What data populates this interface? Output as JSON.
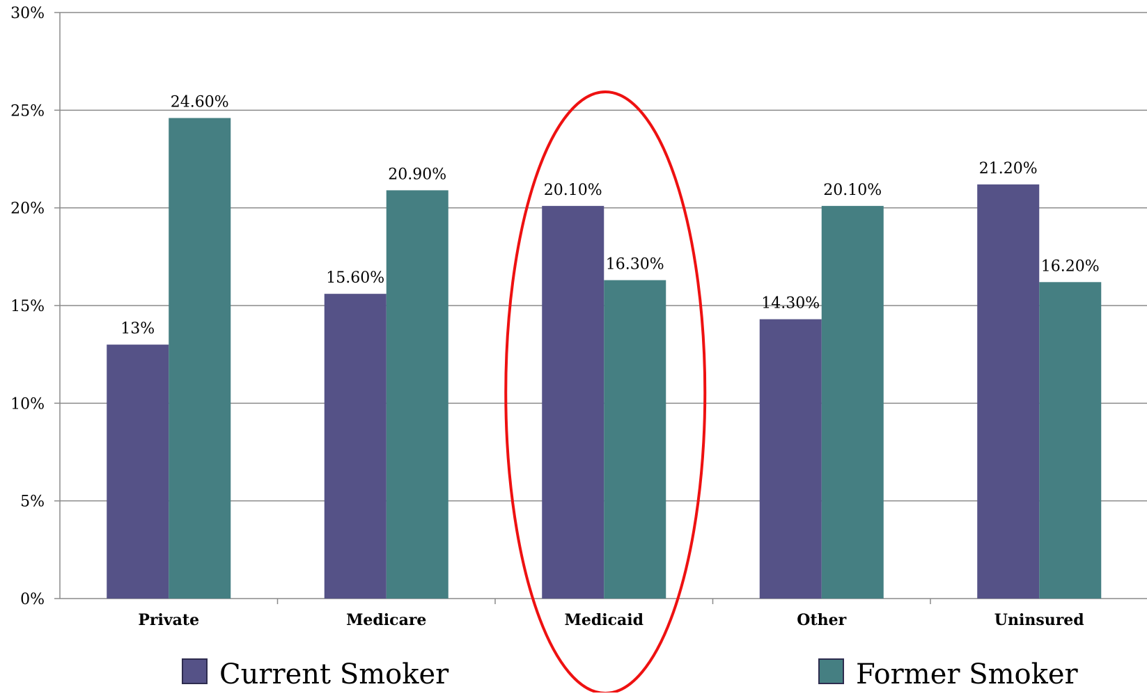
{
  "chart_data": {
    "type": "bar",
    "categories": [
      "Private",
      "Medicare",
      "Medicaid",
      "Other",
      "Uninsured"
    ],
    "series": [
      {
        "name": "Current Smoker",
        "color": "#555287",
        "values": [
          13,
          15.6,
          20.1,
          14.3,
          21.2
        ],
        "labels": [
          "13%",
          "15.60%",
          "20.10%",
          "14.30%",
          "21.20%"
        ]
      },
      {
        "name": "Former Smoker",
        "color": "#457f82",
        "values": [
          24.6,
          20.9,
          16.3,
          20.1,
          16.2
        ],
        "labels": [
          "24.60%",
          "20.90%",
          "16.30%",
          "20.10%",
          "16.20%"
        ]
      }
    ],
    "ylim": [
      0,
      30
    ],
    "yticks": [
      "0%",
      "5%",
      "10%",
      "15%",
      "20%",
      "25%",
      "30%"
    ],
    "grid": true,
    "legend": "bottom",
    "highlight": {
      "category": "Medicaid",
      "shape": "ellipse",
      "color": "#ee1111"
    }
  }
}
